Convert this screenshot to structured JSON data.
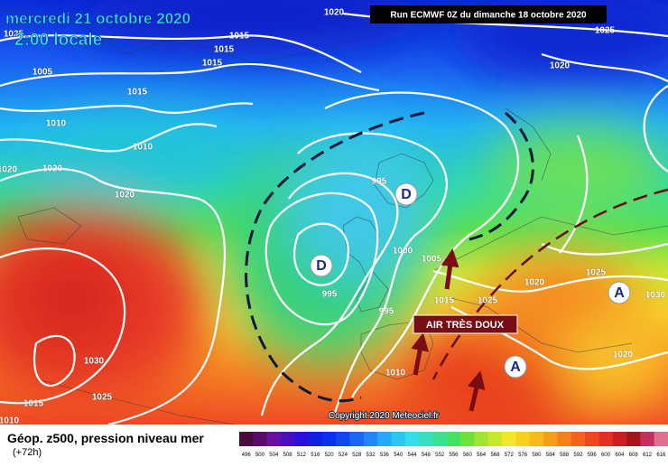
{
  "header": {
    "title": "mercredi 21 octobre 2020",
    "time": "2:00 locale",
    "run": "Run ECMWF 0Z du dimanche 18 octobre 2020"
  },
  "map": {
    "isobar_labels": [
      1020,
      1025,
      1015,
      1015,
      1015,
      1005,
      1015,
      1010,
      1010,
      1020,
      1020,
      1020,
      1025,
      1020,
      995,
      1000,
      1005,
      995,
      995,
      1015,
      1025,
      1020,
      1025,
      1030,
      1020,
      1030,
      1015,
      1025,
      1010,
      1010
    ],
    "centers": [
      "D",
      "D",
      "A",
      "A"
    ],
    "annotation": "AIR TRÈS DOUX",
    "copyright": "Copyright 2020 Meteociel.fr"
  },
  "legend": {
    "title": "Géop. z500, pression niveau mer",
    "subtitle": "(+72h)",
    "scale": [
      496,
      500,
      504,
      508,
      512,
      516,
      520,
      524,
      528,
      532,
      536,
      540,
      544,
      548,
      552,
      556,
      560,
      564,
      568,
      572,
      576,
      580,
      584,
      588,
      592,
      596,
      600,
      604,
      608,
      612,
      616
    ]
  }
}
